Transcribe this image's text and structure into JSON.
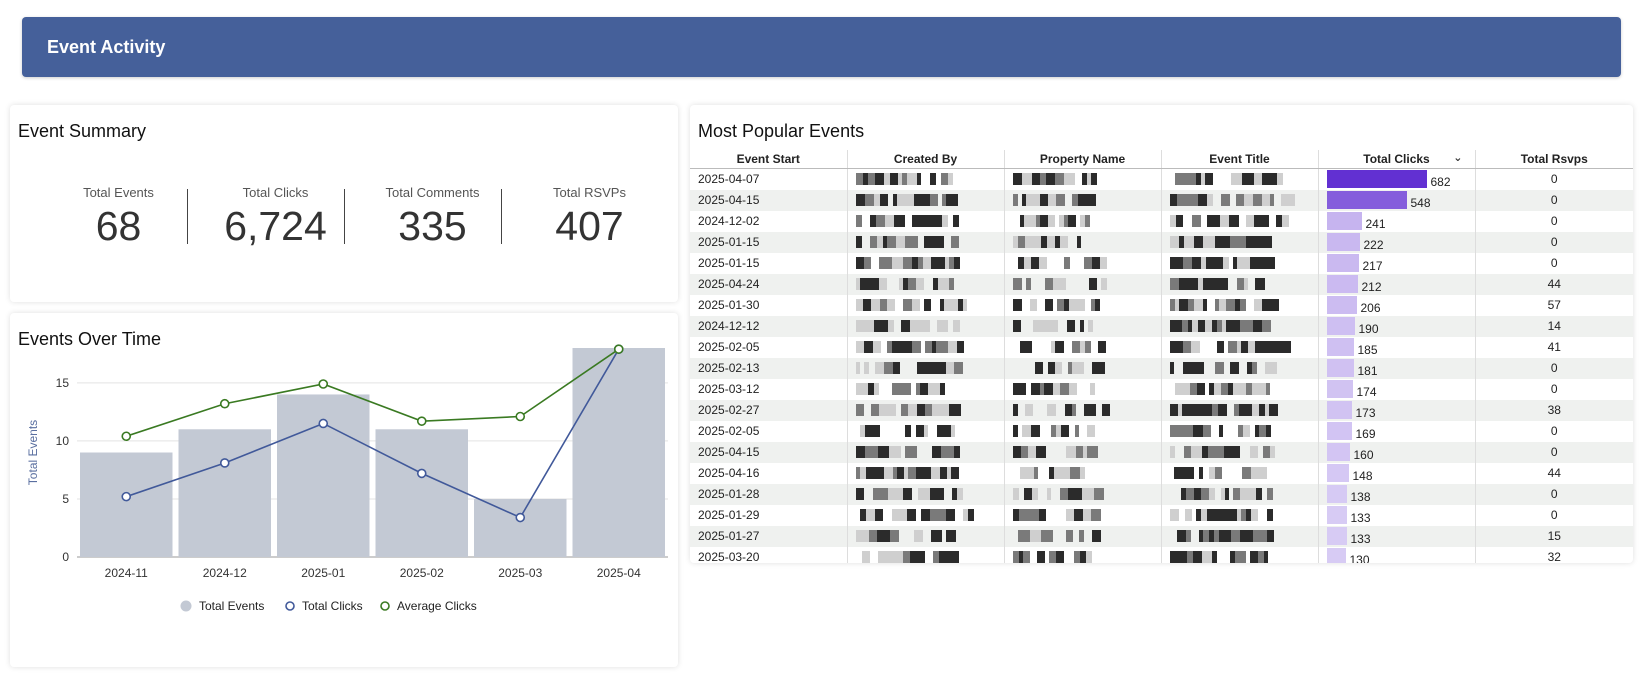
{
  "header": {
    "title": "Event Activity"
  },
  "summary": {
    "title": "Event Summary",
    "kpis": [
      {
        "label": "Total Events",
        "value": "68"
      },
      {
        "label": "Total Clicks",
        "value": "6,724"
      },
      {
        "label": "Total Comments",
        "value": "335"
      },
      {
        "label": "Total RSVPs",
        "value": "407"
      }
    ]
  },
  "chart": {
    "title": "Events Over Time",
    "legend": {
      "bars": "Total Events",
      "line1": "Total Clicks",
      "line2": "Average Clicks"
    }
  },
  "chart_data": {
    "type": "bar",
    "categories": [
      "2024-11",
      "2024-12",
      "2025-01",
      "2025-02",
      "2025-03",
      "2025-04"
    ],
    "series": [
      {
        "name": "Total Events",
        "type": "bar",
        "values": [
          9,
          11,
          14,
          11,
          5,
          18
        ]
      },
      {
        "name": "Total Clicks",
        "type": "line",
        "values": [
          5.2,
          8.1,
          11.5,
          7.2,
          3.4,
          17.9
        ]
      },
      {
        "name": "Average Clicks",
        "type": "line",
        "values": [
          10.4,
          13.2,
          14.9,
          11.7,
          12.1,
          17.9
        ]
      }
    ],
    "ylabel": "Total Events",
    "xlabel": "",
    "ylim": [
      0,
      18
    ],
    "yticks": [
      "0",
      "5",
      "10",
      "15"
    ],
    "grid": true,
    "legend_position": "bottom",
    "colors": {
      "bar": "#c3c9d4",
      "line1": "#41599a",
      "line2": "#3a7a22"
    }
  },
  "popular": {
    "title": "Most Popular Events",
    "columns": [
      "Event Start",
      "Created By",
      "Property Name",
      "Event Title",
      "Total Clicks",
      "Total Rsvps"
    ],
    "bar_max": 682,
    "rows": [
      {
        "start": "2025-04-07",
        "clicks": "682",
        "rsvps": "0"
      },
      {
        "start": "2025-04-15",
        "clicks": "548",
        "rsvps": "0"
      },
      {
        "start": "2024-12-02",
        "clicks": "241",
        "rsvps": "0"
      },
      {
        "start": "2025-01-15",
        "clicks": "222",
        "rsvps": "0"
      },
      {
        "start": "2025-01-15",
        "clicks": "217",
        "rsvps": "0"
      },
      {
        "start": "2025-04-24",
        "clicks": "212",
        "rsvps": "44"
      },
      {
        "start": "2025-01-30",
        "clicks": "206",
        "rsvps": "57"
      },
      {
        "start": "2024-12-12",
        "clicks": "190",
        "rsvps": "14"
      },
      {
        "start": "2025-02-05",
        "clicks": "185",
        "rsvps": "41"
      },
      {
        "start": "2025-02-13",
        "clicks": "181",
        "rsvps": "0"
      },
      {
        "start": "2025-03-12",
        "clicks": "174",
        "rsvps": "0"
      },
      {
        "start": "2025-02-27",
        "clicks": "173",
        "rsvps": "38"
      },
      {
        "start": "2025-02-05",
        "clicks": "169",
        "rsvps": "0"
      },
      {
        "start": "2025-04-15",
        "clicks": "160",
        "rsvps": "0"
      },
      {
        "start": "2025-04-16",
        "clicks": "148",
        "rsvps": "44"
      },
      {
        "start": "2025-01-28",
        "clicks": "138",
        "rsvps": "0"
      },
      {
        "start": "2025-01-29",
        "clicks": "133",
        "rsvps": "0"
      },
      {
        "start": "2025-01-27",
        "clicks": "133",
        "rsvps": "15"
      },
      {
        "start": "2025-03-20",
        "clicks": "130",
        "rsvps": "32"
      }
    ]
  }
}
